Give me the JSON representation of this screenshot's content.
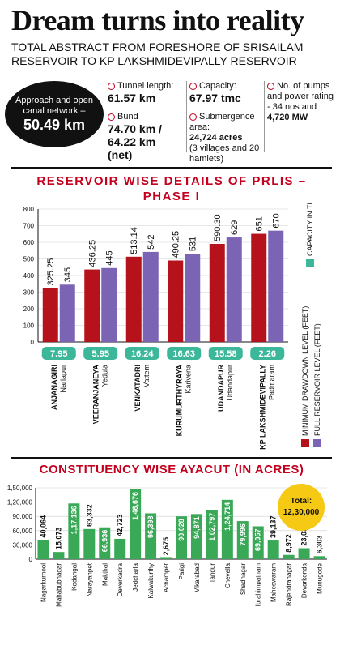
{
  "header": {
    "title": "Dream turns into reality",
    "subtitle": "TOTAL ABSTRACT FROM FORESHORE OF SRISAILAM RESERVOIR TO KP LAKSHMIDEVIPALLY RESERVOIR"
  },
  "approach": {
    "label": "Approach and open canal network –",
    "value": "50.49 km"
  },
  "stats": {
    "tunnel_label": "Tunnel length:",
    "tunnel_value": "61.57 km",
    "capacity_label": "Capacity:",
    "capacity_value": "67.97 tmc",
    "pumps_label": "No. of pumps and power rating - 34 nos and",
    "pumps_value": "4,720 MW",
    "bund_label": "Bund",
    "bund_value": "74.70 km / 64.22 km",
    "bund_suffix": "(net)",
    "submergence_label": "Submergence area:",
    "submergence_value": "24,724 acres",
    "submergence_suffix": "(3 villages and 20 hamlets)"
  },
  "chart_data": [
    {
      "type": "bar",
      "title": "RESERVOIR WISE DETAILS OF PRLIS – PHASE I",
      "categories": [
        "ANJANAGIRI",
        "VEERANJANEYA",
        "VENKATADRI",
        "KURUMURTHYRAYA",
        "UDANDAPUR",
        "KP LAKSHMIDEVIPALLY"
      ],
      "subcategories": [
        "Narlapur",
        "Yedula",
        "Vattem",
        "Karivena",
        "Udandapur",
        "Padmaram"
      ],
      "ylim": [
        0,
        800
      ],
      "yticks": [
        0,
        100,
        200,
        300,
        400,
        500,
        600,
        700,
        800
      ],
      "series": [
        {
          "name": "MINIMUM DRAWDOWN LEVEL (FEET)",
          "color": "#b5121b",
          "values": [
            325.25,
            436.25,
            513.14,
            490.25,
            590.3,
            651
          ],
          "labels": [
            "325.25",
            "436.25",
            "513.14",
            "490.25",
            "590.30",
            "651"
          ]
        },
        {
          "name": "FULL RESERVOIR LEVEL (FEET)",
          "color": "#7a64b3",
          "values": [
            345,
            445,
            542,
            531,
            629,
            670
          ],
          "labels": [
            "345",
            "445",
            "542",
            "531",
            "629",
            "670"
          ]
        }
      ],
      "capacity_legend": "CAPACITY IN TMC",
      "capacity_color": "#3cb79a",
      "capacity_values": [
        "7.95",
        "5.95",
        "16.24",
        "16.63",
        "15.58",
        "2.26"
      ]
    },
    {
      "type": "bar",
      "title": "CONSTITUENCY WISE AYACUT (IN ACRES)",
      "categories": [
        "Nagarkurnool",
        "Mahabubnagar",
        "Kodangal",
        "Narayanpet",
        "Makthal",
        "Deverkadra",
        "Jedcharla",
        "Kalwakurthy",
        "Achampet",
        "Parigi",
        "Vikarabad",
        "Tandur",
        "Chevella",
        "Shadnagar",
        "Ibrahimpatnam",
        "Maheswaram",
        "Rajendranagar",
        "Devarkonda",
        "Munugode"
      ],
      "values": [
        40064,
        15073,
        117136,
        63332,
        66936,
        42723,
        146676,
        96398,
        2675,
        90028,
        94871,
        102797,
        124714,
        79996,
        69057,
        39137,
        8972,
        23035,
        6303
      ],
      "labels": [
        "40,064",
        "15,073",
        "1,17,136",
        "63,332",
        "66,936",
        "42,723",
        "1,46,676",
        "96,398",
        "2,675",
        "90,028",
        "94,871",
        "1,02,797",
        "1,24,714",
        "79,996",
        "69,057",
        "39,137",
        "8,972",
        "23,035",
        "6,303"
      ],
      "ylim": [
        0,
        150000
      ],
      "yticks": [
        0,
        30000,
        60000,
        90000,
        120000,
        150000
      ],
      "ytick_labels": [
        "0",
        "30,000",
        "60,000",
        "90,000",
        "1,20,000",
        "1,50,000"
      ],
      "color": "#3aa957",
      "total_label": "Total:",
      "total_value": "12,30,000"
    }
  ]
}
